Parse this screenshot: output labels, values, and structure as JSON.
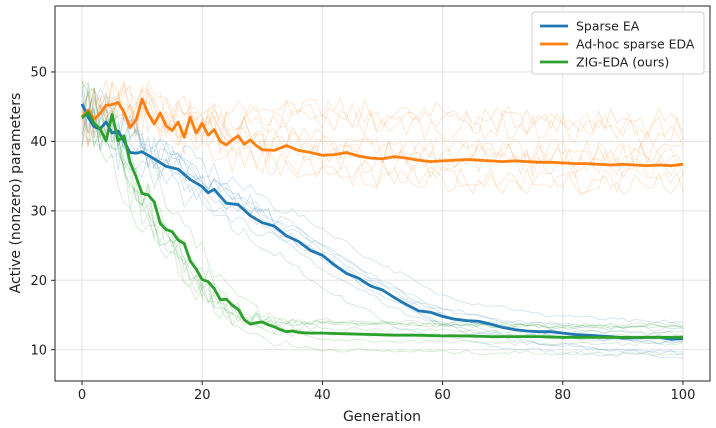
{
  "chart_data": {
    "type": "line",
    "title": "",
    "xlabel": "Generation",
    "ylabel": "Active (nonzero) parameters",
    "xlim": [
      -4.5,
      104.5
    ],
    "ylim": [
      5.5,
      59.5
    ],
    "xticks": [
      0,
      20,
      40,
      60,
      80,
      100
    ],
    "yticks": [
      10,
      20,
      30,
      40,
      50
    ],
    "grid": true,
    "legend_position": "top-right",
    "series": [
      {
        "name": "Sparse EA",
        "color": "#1f77b4",
        "points": [
          [
            0,
            45.4
          ],
          [
            1,
            43.5
          ],
          [
            2,
            42.1
          ],
          [
            3,
            41.8
          ],
          [
            4,
            42.8
          ],
          [
            5,
            41.2
          ],
          [
            6,
            41.5
          ],
          [
            7,
            40.0
          ],
          [
            8,
            38.4
          ],
          [
            9,
            38.3
          ],
          [
            10,
            38.5
          ],
          [
            12,
            37.5
          ],
          [
            14,
            36.4
          ],
          [
            16,
            36.0
          ],
          [
            18,
            34.5
          ],
          [
            20,
            33.5
          ],
          [
            21,
            32.6
          ],
          [
            22,
            33.1
          ],
          [
            24,
            31.1
          ],
          [
            26,
            30.9
          ],
          [
            28,
            29.3
          ],
          [
            30,
            28.3
          ],
          [
            32,
            27.8
          ],
          [
            34,
            26.4
          ],
          [
            36,
            25.6
          ],
          [
            38,
            24.3
          ],
          [
            40,
            23.6
          ],
          [
            42,
            22.2
          ],
          [
            44,
            21.0
          ],
          [
            46,
            20.3
          ],
          [
            48,
            19.2
          ],
          [
            50,
            18.6
          ],
          [
            52,
            17.5
          ],
          [
            54,
            16.5
          ],
          [
            56,
            15.6
          ],
          [
            58,
            15.4
          ],
          [
            60,
            14.8
          ],
          [
            62,
            14.4
          ],
          [
            64,
            14.2
          ],
          [
            66,
            14.1
          ],
          [
            68,
            13.7
          ],
          [
            70,
            13.2
          ],
          [
            72,
            12.9
          ],
          [
            74,
            12.7
          ],
          [
            76,
            12.6
          ],
          [
            78,
            12.6
          ],
          [
            80,
            12.4
          ],
          [
            82,
            12.2
          ],
          [
            84,
            12.1
          ],
          [
            86,
            12.0
          ],
          [
            88,
            11.9
          ],
          [
            90,
            11.7
          ],
          [
            92,
            11.7
          ],
          [
            94,
            11.8
          ],
          [
            96,
            11.8
          ],
          [
            98,
            11.5
          ],
          [
            100,
            11.6
          ]
        ]
      },
      {
        "name": "Ad-hoc sparse EDA",
        "color": "#ff7f0e",
        "points": [
          [
            0,
            43.5
          ],
          [
            1,
            44.5
          ],
          [
            2,
            43.2
          ],
          [
            3,
            44.0
          ],
          [
            4,
            45.2
          ],
          [
            5,
            45.3
          ],
          [
            6,
            45.6
          ],
          [
            7,
            44.2
          ],
          [
            8,
            42.0
          ],
          [
            9,
            43.1
          ],
          [
            10,
            46.1
          ],
          [
            11,
            44.0
          ],
          [
            12,
            42.5
          ],
          [
            13,
            44.1
          ],
          [
            14,
            42.2
          ],
          [
            15,
            41.6
          ],
          [
            16,
            42.8
          ],
          [
            17,
            40.6
          ],
          [
            18,
            43.5
          ],
          [
            19,
            41.2
          ],
          [
            20,
            42.6
          ],
          [
            21,
            40.9
          ],
          [
            22,
            41.7
          ],
          [
            23,
            40.0
          ],
          [
            24,
            39.5
          ],
          [
            25,
            40.2
          ],
          [
            26,
            40.8
          ],
          [
            27,
            39.6
          ],
          [
            28,
            40.2
          ],
          [
            29,
            39.4
          ],
          [
            30,
            38.8
          ],
          [
            32,
            38.7
          ],
          [
            34,
            39.4
          ],
          [
            36,
            38.7
          ],
          [
            38,
            38.4
          ],
          [
            40,
            38.0
          ],
          [
            42,
            38.1
          ],
          [
            44,
            38.4
          ],
          [
            46,
            37.9
          ],
          [
            48,
            37.6
          ],
          [
            50,
            37.5
          ],
          [
            52,
            37.8
          ],
          [
            54,
            37.6
          ],
          [
            56,
            37.3
          ],
          [
            58,
            37.1
          ],
          [
            60,
            37.2
          ],
          [
            62,
            37.3
          ],
          [
            64,
            37.4
          ],
          [
            66,
            37.3
          ],
          [
            68,
            37.2
          ],
          [
            70,
            37.1
          ],
          [
            72,
            37.2
          ],
          [
            74,
            37.1
          ],
          [
            76,
            37.0
          ],
          [
            78,
            37.0
          ],
          [
            80,
            36.9
          ],
          [
            82,
            36.8
          ],
          [
            84,
            36.8
          ],
          [
            86,
            36.7
          ],
          [
            88,
            36.6
          ],
          [
            90,
            36.7
          ],
          [
            92,
            36.6
          ],
          [
            94,
            36.5
          ],
          [
            96,
            36.6
          ],
          [
            98,
            36.5
          ],
          [
            100,
            36.7
          ]
        ]
      },
      {
        "name": "ZIG-EDA (ours)",
        "color": "#2ca02c",
        "points": [
          [
            0,
            43.4
          ],
          [
            1,
            44.2
          ],
          [
            2,
            42.6
          ],
          [
            3,
            41.8
          ],
          [
            4,
            40.1
          ],
          [
            5,
            43.9
          ],
          [
            6,
            40.1
          ],
          [
            7,
            40.8
          ],
          [
            8,
            37.0
          ],
          [
            9,
            34.9
          ],
          [
            10,
            32.5
          ],
          [
            11,
            32.3
          ],
          [
            12,
            31.3
          ],
          [
            13,
            28.2
          ],
          [
            14,
            27.3
          ],
          [
            15,
            27.0
          ],
          [
            16,
            25.8
          ],
          [
            17,
            25.3
          ],
          [
            18,
            22.8
          ],
          [
            19,
            21.6
          ],
          [
            20,
            20.1
          ],
          [
            21,
            19.8
          ],
          [
            22,
            18.8
          ],
          [
            23,
            17.2
          ],
          [
            24,
            17.3
          ],
          [
            25,
            16.4
          ],
          [
            26,
            15.8
          ],
          [
            27,
            14.3
          ],
          [
            28,
            13.7
          ],
          [
            29,
            13.9
          ],
          [
            30,
            14.0
          ],
          [
            31,
            13.6
          ],
          [
            32,
            13.3
          ],
          [
            33,
            12.9
          ],
          [
            34,
            12.6
          ],
          [
            35,
            12.7
          ],
          [
            36,
            12.5
          ],
          [
            38,
            12.4
          ],
          [
            40,
            12.4
          ],
          [
            44,
            12.3
          ],
          [
            48,
            12.2
          ],
          [
            52,
            12.1
          ],
          [
            56,
            12.1
          ],
          [
            60,
            12.0
          ],
          [
            64,
            12.0
          ],
          [
            68,
            11.9
          ],
          [
            72,
            11.9
          ],
          [
            76,
            11.9
          ],
          [
            80,
            11.8
          ],
          [
            84,
            11.8
          ],
          [
            88,
            11.8
          ],
          [
            92,
            11.8
          ],
          [
            96,
            11.8
          ],
          [
            100,
            11.8
          ]
        ]
      }
    ]
  }
}
